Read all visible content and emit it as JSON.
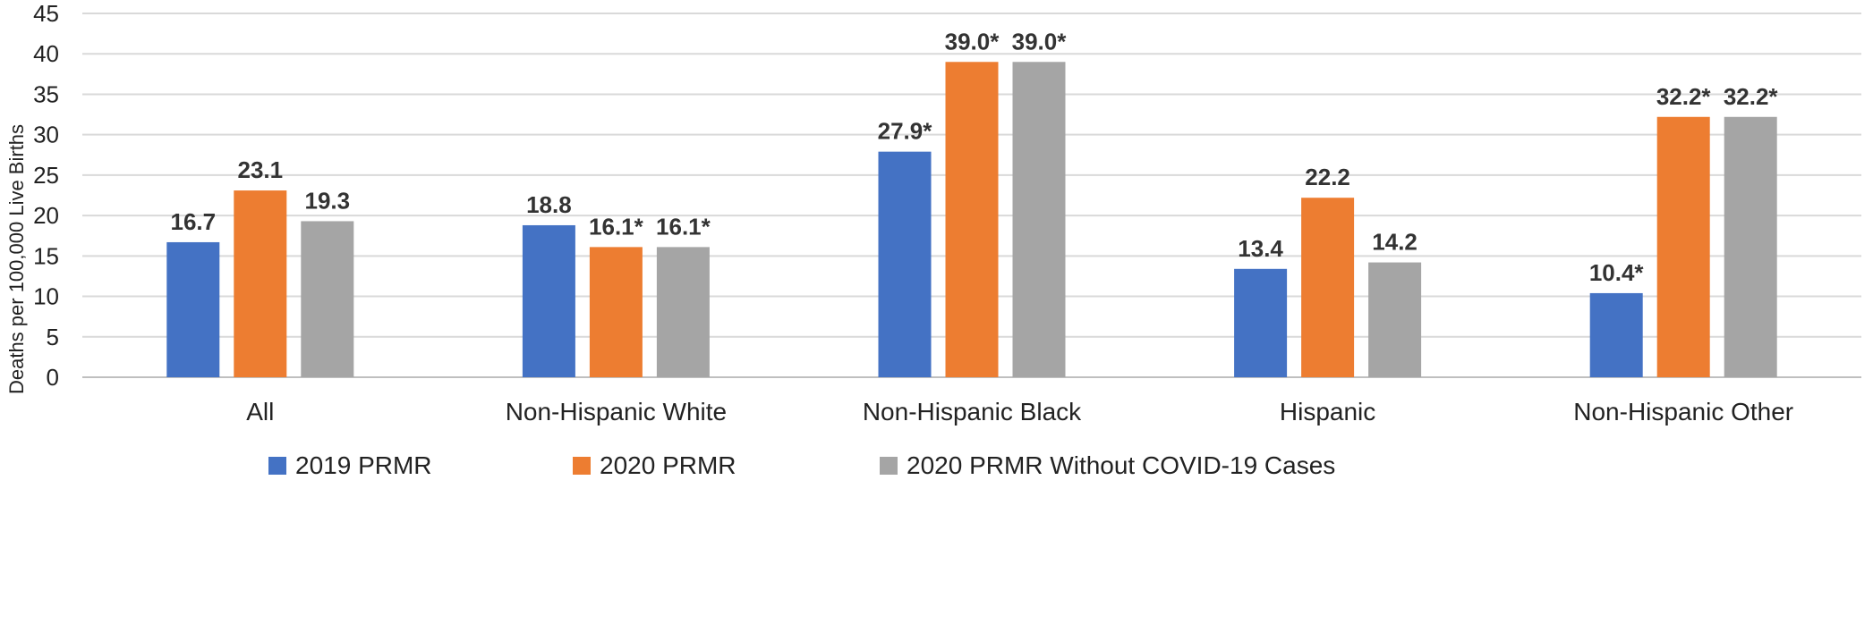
{
  "chart_data": {
    "type": "bar",
    "ylabel": "Deaths per 100,000 Live Births",
    "xlabel": "",
    "ylim": [
      0,
      45
    ],
    "yticks": [
      0,
      5,
      10,
      15,
      20,
      25,
      30,
      35,
      40,
      45
    ],
    "grid": true,
    "legend_position": "bottom",
    "categories": [
      "All",
      "Non-Hispanic White",
      "Non-Hispanic Black",
      "Hispanic",
      "Non-Hispanic Other"
    ],
    "series": [
      {
        "name": "2019 PRMR",
        "color": "#4472C4",
        "values": [
          16.7,
          18.8,
          27.9,
          13.4,
          10.4
        ],
        "labels": [
          "16.7",
          "18.8",
          "27.9*",
          "13.4",
          "10.4*"
        ]
      },
      {
        "name": "2020 PRMR",
        "color": "#ED7D31",
        "values": [
          23.1,
          16.1,
          39.0,
          22.2,
          32.2
        ],
        "labels": [
          "23.1",
          "16.1*",
          "39.0*",
          "22.2",
          "32.2*"
        ]
      },
      {
        "name": "2020 PRMR Without COVID-19 Cases",
        "color": "#A5A5A5",
        "values": [
          19.3,
          16.1,
          39.0,
          14.2,
          32.2
        ],
        "labels": [
          "19.3",
          "16.1*",
          "39.0*",
          "14.2",
          "32.2*"
        ]
      }
    ]
  }
}
